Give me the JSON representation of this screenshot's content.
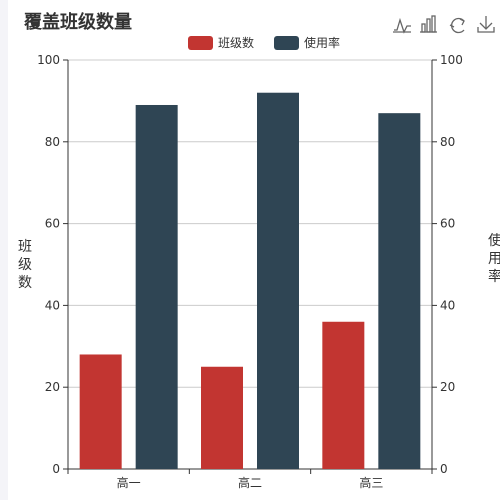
{
  "chart_data": {
    "type": "bar",
    "title": "覆盖班级数量",
    "categories": [
      "高一",
      "高二",
      "高三"
    ],
    "series": [
      {
        "name": "班级数",
        "values": [
          28,
          25,
          36
        ],
        "color": "#c23531",
        "axis": "left"
      },
      {
        "name": "使用率",
        "values": [
          89,
          92,
          87
        ],
        "color": "#2f4554",
        "axis": "right"
      }
    ],
    "ylim": [
      0,
      100
    ],
    "yticks": [
      0,
      20,
      40,
      60,
      80,
      100
    ],
    "ylabel_left": "班级数",
    "ylabel_right": "使用率",
    "grid": true,
    "legend": "top-center"
  },
  "toolbox": {
    "icons": [
      "line-chart-icon",
      "bar-chart-icon",
      "restore-icon",
      "download-icon"
    ]
  }
}
